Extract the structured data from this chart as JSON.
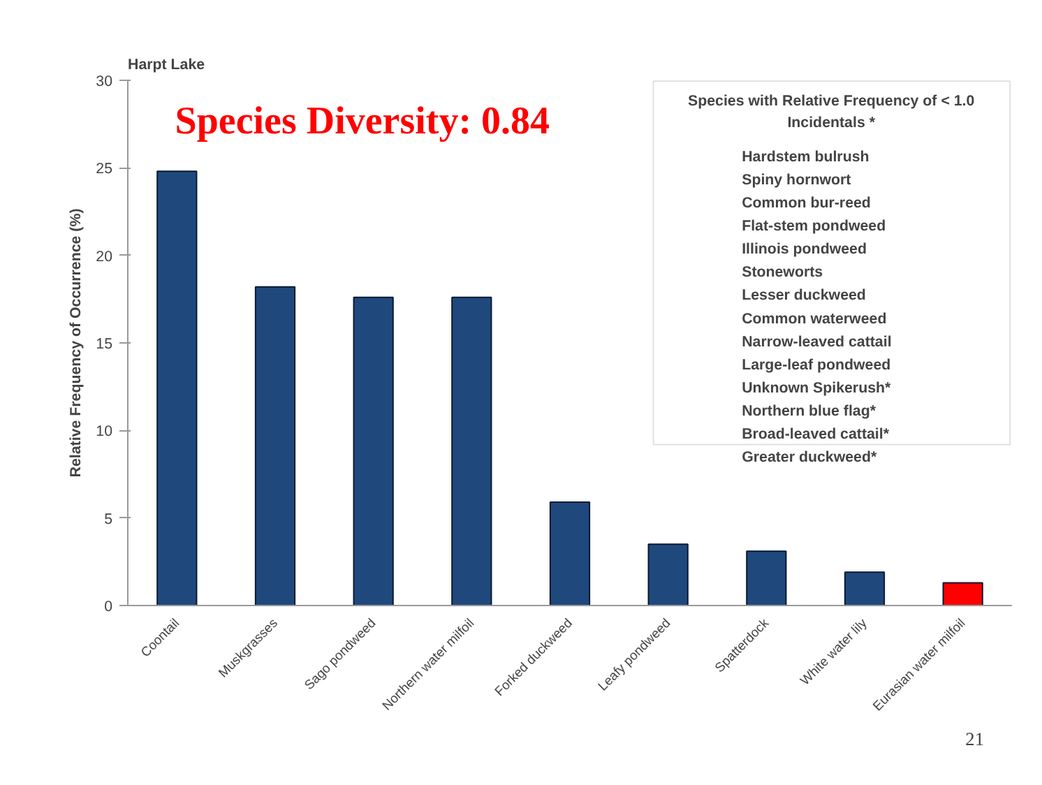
{
  "chart_data": {
    "type": "bar",
    "title": "Harpt Lake",
    "ylabel": "Relative Frequency of Occurrence (%)",
    "categories": [
      "Coontail",
      "Muskgrasses",
      "Sago pondweed",
      "Northern water milfoil",
      "Forked duckweed",
      "Leafy pondweed",
      "Spatterdock",
      "White water lily",
      "Eurasian water milfoil"
    ],
    "values": [
      24.8,
      18.2,
      17.6,
      17.6,
      5.9,
      3.5,
      3.1,
      1.9,
      1.3
    ],
    "colors": [
      "#1f497d",
      "#1f497d",
      "#1f497d",
      "#1f497d",
      "#1f497d",
      "#1f497d",
      "#1f497d",
      "#1f497d",
      "#ff0000"
    ],
    "ylim": [
      0,
      30
    ],
    "yticks": [
      0,
      5,
      10,
      15,
      20,
      25,
      30
    ],
    "grid": false,
    "annotations": [
      "Species Diversity: 0.84",
      "Species with Relative Frequency of < 1.0\nIncidentals *",
      "Hardstem bulrush\nSpiny hornwort\nCommon bur-reed\nFlat-stem pondweed\nIllinois pondweed\nStoneworts\nLesser duckweed\nCommon waterweed\nNarrow-leaved cattail\nLarge-leaf pondweed\nUnknown Spikerush*\nNorthern blue flag*\nBroad-leaved cattail*\nGreater duckweed*",
      "21"
    ]
  }
}
